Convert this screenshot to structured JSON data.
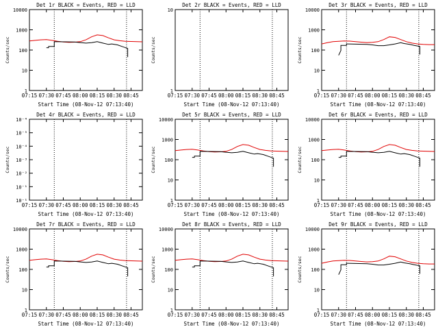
{
  "figure": {
    "xlabel": "Start Time (08-Nov-12 07:13:40)",
    "ylabel": "Counts/sec",
    "xticks": [
      "07:15",
      "07:30",
      "07:45",
      "08:00",
      "08:15",
      "08:30",
      "08:45"
    ]
  },
  "chart_data": [
    {
      "id": "det1",
      "type": "line",
      "title": "Det 1r BLACK = Events, RED = LLD",
      "scale": "log",
      "yticks": [
        "1",
        "10",
        "100",
        "1000",
        "10000"
      ],
      "ylim": [
        1,
        10000
      ],
      "has_data": true,
      "profile": "A"
    },
    {
      "id": "det2",
      "type": "line",
      "title": "Det 2r BLACK = Events, RED = LLD",
      "scale": "log",
      "yticks": [
        "1",
        "10"
      ],
      "ylim": [
        1,
        10
      ],
      "has_data": false,
      "profile": "none"
    },
    {
      "id": "det3",
      "type": "line",
      "title": "Det 3r BLACK = Events, RED = LLD",
      "scale": "log",
      "yticks": [
        "1",
        "10",
        "100",
        "1000",
        "10000"
      ],
      "ylim": [
        1,
        10000
      ],
      "has_data": true,
      "profile": "B"
    },
    {
      "id": "det4",
      "type": "line",
      "title": "Det 4r BLACK = Events, RED = LLD",
      "scale": "log",
      "yticks": [
        "10⁻¹",
        "10⁻¹",
        "10⁻²",
        "10⁻³",
        "10⁻⁴",
        "10⁻⁵",
        "10⁻⁴"
      ],
      "ylim": [
        1e-06,
        0.0001
      ],
      "has_data": false,
      "profile": "none"
    },
    {
      "id": "det5",
      "type": "line",
      "title": "Det 5r BLACK = Events, RED = LLD",
      "scale": "log",
      "yticks": [
        "1",
        "10",
        "100",
        "1000",
        "10000"
      ],
      "ylim": [
        1,
        10000
      ],
      "has_data": true,
      "profile": "A"
    },
    {
      "id": "det6",
      "type": "line",
      "title": "Det 6r BLACK = Events, RED = LLD",
      "scale": "log",
      "yticks": [
        "1",
        "10",
        "100",
        "1000",
        "10000"
      ],
      "ylim": [
        1,
        10000
      ],
      "has_data": true,
      "profile": "A"
    },
    {
      "id": "det7",
      "type": "line",
      "title": "Det 7r BLACK = Events, RED = LLD",
      "scale": "log",
      "yticks": [
        "1",
        "10",
        "100",
        "1000",
        "10000"
      ],
      "ylim": [
        1,
        10000
      ],
      "has_data": true,
      "profile": "A"
    },
    {
      "id": "det8",
      "type": "line",
      "title": "Det 8r BLACK = Events, RED = LLD",
      "scale": "log",
      "yticks": [
        "1",
        "10",
        "100",
        "1000",
        "10000"
      ],
      "ylim": [
        1,
        10000
      ],
      "has_data": true,
      "profile": "A"
    },
    {
      "id": "det9",
      "type": "line",
      "title": "Det 9r BLACK = Events, RED = LLD",
      "scale": "log",
      "yticks": [
        "1",
        "10",
        "100",
        "1000",
        "10000"
      ],
      "ylim": [
        1,
        10000
      ],
      "has_data": true,
      "profile": "B"
    }
  ],
  "series_profiles": {
    "A": {
      "x_minutes": [
        0,
        5,
        10,
        15,
        20,
        25,
        30,
        35,
        40,
        45,
        50,
        55,
        60,
        65,
        70,
        75,
        80,
        85,
        90,
        95,
        100
      ],
      "red_lld": [
        280,
        300,
        320,
        330,
        300,
        270,
        250,
        240,
        245,
        260,
        320,
        450,
        560,
        520,
        400,
        320,
        290,
        270,
        265,
        260,
        255
      ],
      "black_events_x": [
        15,
        17,
        17,
        22,
        22,
        40,
        45,
        50,
        55,
        60,
        65,
        70,
        73,
        78,
        82,
        87,
        87
      ],
      "black_events": [
        130,
        130,
        150,
        150,
        260,
        250,
        235,
        220,
        230,
        260,
        220,
        190,
        200,
        180,
        150,
        120,
        45
      ]
    },
    "B": {
      "x_minutes": [
        0,
        5,
        10,
        15,
        20,
        25,
        30,
        35,
        40,
        45,
        50,
        55,
        60,
        65,
        70,
        75,
        80,
        85,
        90,
        95,
        100
      ],
      "red_lld": [
        200,
        230,
        260,
        270,
        280,
        275,
        260,
        245,
        235,
        240,
        260,
        330,
        450,
        420,
        330,
        260,
        220,
        200,
        190,
        185,
        185
      ],
      "black_events_x": [
        15,
        17,
        17,
        22,
        22,
        40,
        45,
        50,
        55,
        60,
        65,
        70,
        73,
        78,
        82,
        87,
        87
      ],
      "black_events": [
        55,
        95,
        170,
        170,
        200,
        190,
        180,
        165,
        165,
        180,
        200,
        230,
        210,
        190,
        170,
        150,
        60
      ]
    }
  }
}
